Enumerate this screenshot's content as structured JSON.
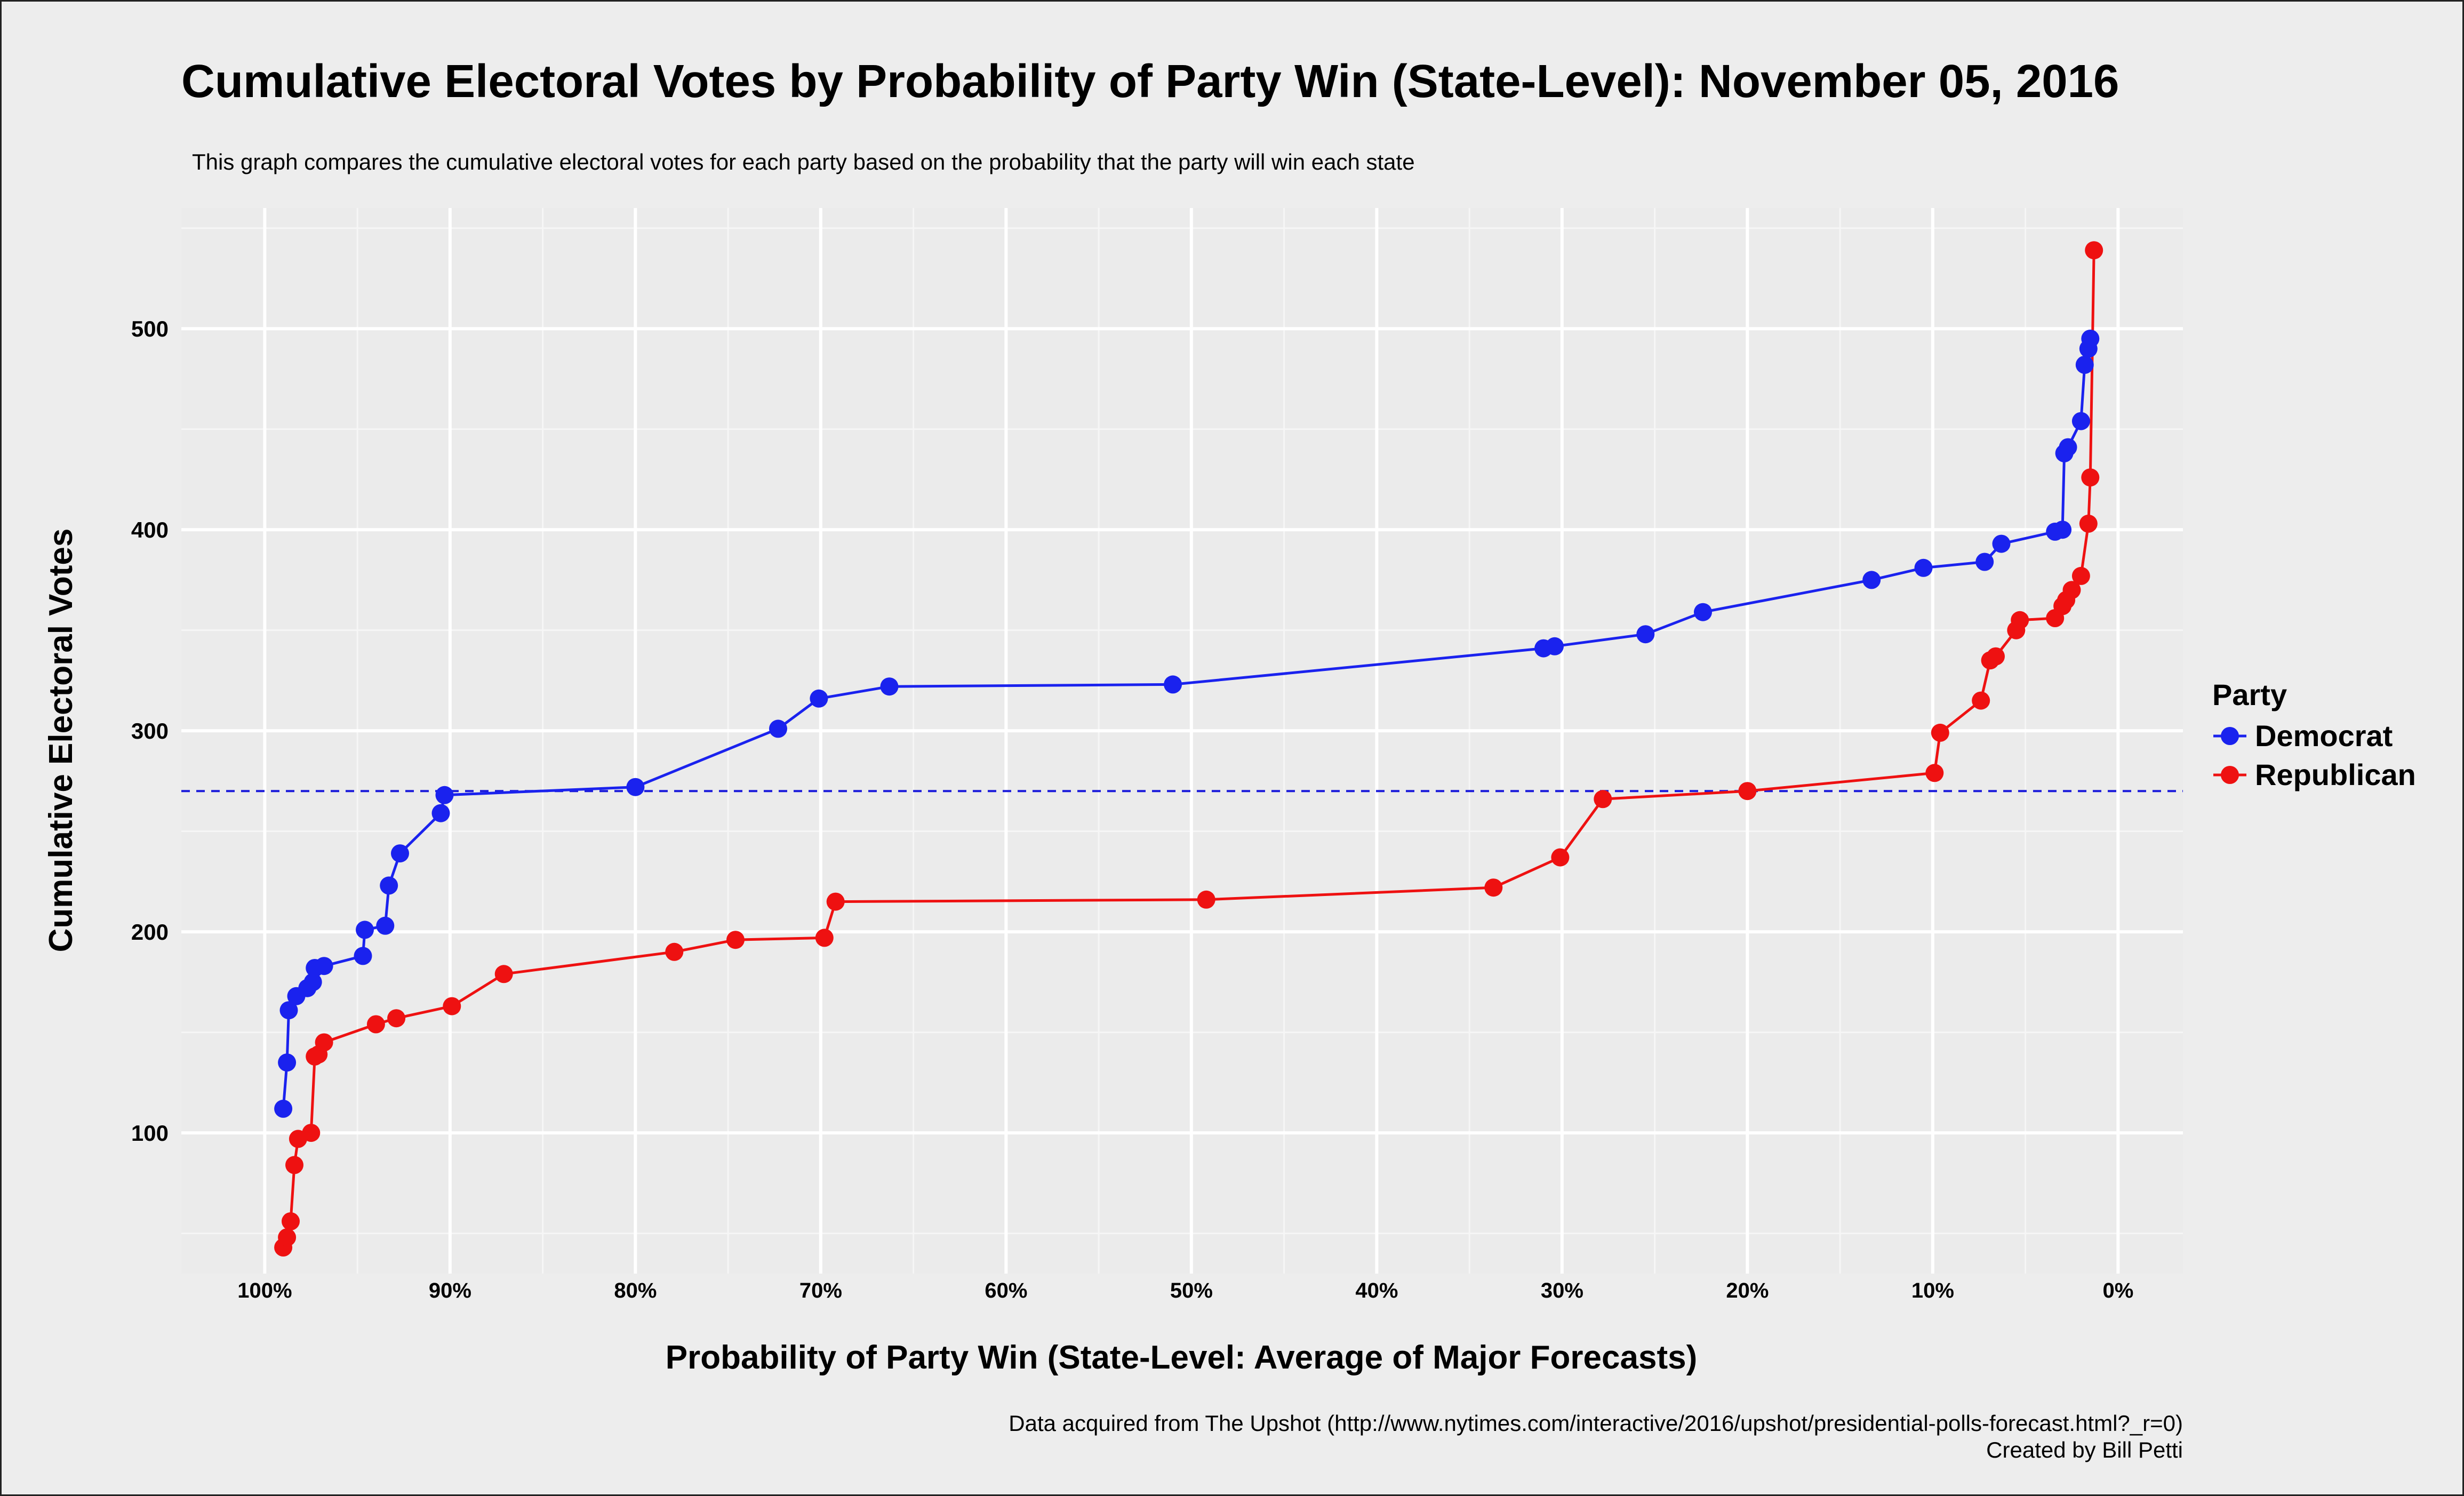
{
  "chart_data": {
    "type": "line",
    "title": "Cumulative Electoral Votes by Probability of Party Win (State-Level): November 05, 2016",
    "subtitle": "This graph compares the cumulative electoral votes for each party based on the probability that the party will win each state",
    "xlabel": "Probability of Party Win (State-Level: Average of Major Forecasts)",
    "ylabel": "Cumulative Electoral Votes",
    "x_unit": "percent",
    "x_reversed": true,
    "xlim": [
      -3.5,
      104.5
    ],
    "ylim": [
      30,
      560
    ],
    "x_ticks": [
      100,
      90,
      80,
      70,
      60,
      50,
      40,
      30,
      20,
      10,
      0
    ],
    "x_tick_labels": [
      "100%",
      "90%",
      "80%",
      "70%",
      "60%",
      "50%",
      "40%",
      "30%",
      "20%",
      "10%",
      "0%"
    ],
    "y_ticks": [
      100,
      200,
      300,
      400,
      500
    ],
    "y_tick_labels": [
      "100",
      "200",
      "300",
      "400",
      "500"
    ],
    "grid": true,
    "reference_line": {
      "y": 270,
      "style": "dashed",
      "color": "#1a1adb"
    },
    "legend": {
      "title": "Party",
      "position": "right",
      "entries": [
        {
          "label": "Democrat",
          "color": "#1a22ee"
        },
        {
          "label": "Republican",
          "color": "#ee1111"
        }
      ]
    },
    "series": [
      {
        "name": "Democrat",
        "color": "#1a22ee",
        "points": [
          [
            99.0,
            112
          ],
          [
            98.8,
            135
          ],
          [
            98.7,
            161
          ],
          [
            98.3,
            168
          ],
          [
            97.7,
            172
          ],
          [
            97.4,
            175
          ],
          [
            97.3,
            182
          ],
          [
            96.8,
            183
          ],
          [
            94.7,
            188
          ],
          [
            94.6,
            201
          ],
          [
            93.5,
            203
          ],
          [
            93.3,
            223
          ],
          [
            92.7,
            239
          ],
          [
            90.5,
            259
          ],
          [
            90.3,
            268
          ],
          [
            80.0,
            272
          ],
          [
            72.3,
            301
          ],
          [
            70.1,
            316
          ],
          [
            66.3,
            322
          ],
          [
            51.0,
            323
          ],
          [
            31.0,
            341
          ],
          [
            30.4,
            342
          ],
          [
            25.5,
            348
          ],
          [
            22.4,
            359
          ],
          [
            13.3,
            375
          ],
          [
            10.5,
            381
          ],
          [
            7.2,
            384
          ],
          [
            6.3,
            393
          ],
          [
            3.4,
            399
          ],
          [
            3.0,
            400
          ],
          [
            2.9,
            438
          ],
          [
            2.7,
            441
          ],
          [
            2.0,
            454
          ],
          [
            1.8,
            482
          ],
          [
            1.6,
            490
          ],
          [
            1.5,
            495
          ]
        ]
      },
      {
        "name": "Republican",
        "color": "#ee1111",
        "points": [
          [
            99.0,
            43
          ],
          [
            98.8,
            48
          ],
          [
            98.6,
            56
          ],
          [
            98.4,
            84
          ],
          [
            98.2,
            97
          ],
          [
            97.5,
            100
          ],
          [
            97.3,
            138
          ],
          [
            97.1,
            139
          ],
          [
            96.8,
            145
          ],
          [
            94.0,
            154
          ],
          [
            92.9,
            157
          ],
          [
            89.9,
            163
          ],
          [
            87.1,
            179
          ],
          [
            77.9,
            190
          ],
          [
            74.6,
            196
          ],
          [
            69.8,
            197
          ],
          [
            69.2,
            215
          ],
          [
            49.2,
            216
          ],
          [
            33.7,
            222
          ],
          [
            30.1,
            237
          ],
          [
            27.8,
            266
          ],
          [
            20.0,
            270
          ],
          [
            9.9,
            279
          ],
          [
            9.6,
            299
          ],
          [
            7.4,
            315
          ],
          [
            6.9,
            335
          ],
          [
            6.6,
            337
          ],
          [
            5.5,
            350
          ],
          [
            5.3,
            355
          ],
          [
            3.4,
            356
          ],
          [
            3.0,
            362
          ],
          [
            2.8,
            365
          ],
          [
            2.5,
            370
          ],
          [
            2.0,
            377
          ],
          [
            1.6,
            403
          ],
          [
            1.5,
            426
          ],
          [
            1.3,
            539
          ]
        ]
      }
    ]
  },
  "footer": {
    "source": "Data acquired from The Upshot (http://www.nytimes.com/interactive/2016/upshot/presidential-polls-forecast.html?_r=0)",
    "credit": "Created by Bill Petti"
  }
}
